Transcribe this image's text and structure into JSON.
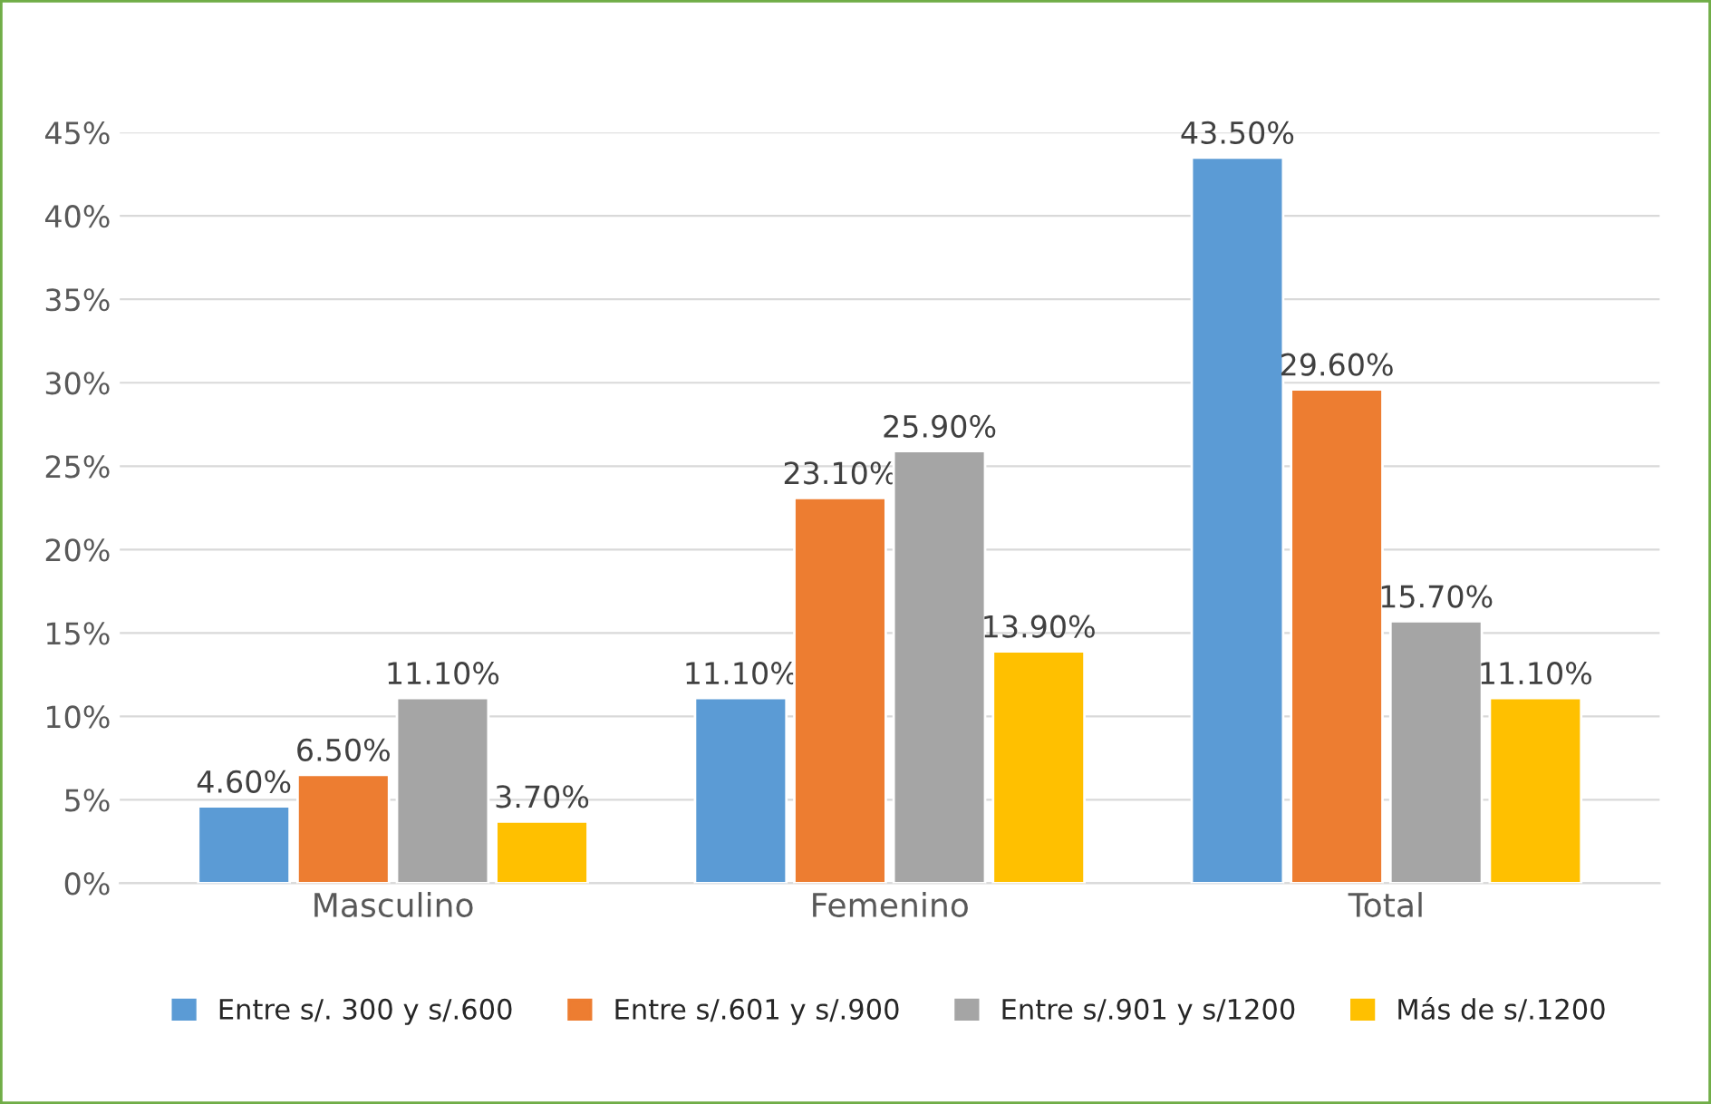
{
  "chart_data": {
    "type": "bar",
    "categories": [
      "Masculino",
      "Femenino",
      "Total"
    ],
    "series": [
      {
        "name": "Entre s/. 300 y s/.600",
        "color": "#5b9bd5",
        "values": [
          4.6,
          11.1,
          43.5
        ],
        "value_labels": [
          "4.60%",
          "11.10%",
          "43.50%"
        ]
      },
      {
        "name": "Entre s/.601 y s/.900",
        "color": "#ed7d31",
        "values": [
          6.5,
          23.1,
          29.6
        ],
        "value_labels": [
          "6.50%",
          "23.10%",
          "29.60%"
        ]
      },
      {
        "name": "Entre s/.901 y s/1200",
        "color": "#a5a5a5",
        "values": [
          11.1,
          25.9,
          15.7
        ],
        "value_labels": [
          "11.10%",
          "25.90%",
          "15.70%"
        ]
      },
      {
        "name": "Más de s/.1200",
        "color": "#ffc000",
        "values": [
          3.7,
          13.9,
          11.1
        ],
        "value_labels": [
          "3.70%",
          "13.90%",
          "11.10%"
        ]
      }
    ],
    "ylim": [
      0,
      45
    ],
    "yticks": [
      {
        "value": 0,
        "label": "0%"
      },
      {
        "value": 5,
        "label": "5%"
      },
      {
        "value": 10,
        "label": "10%"
      },
      {
        "value": 15,
        "label": "15%"
      },
      {
        "value": 20,
        "label": "20%"
      },
      {
        "value": 25,
        "label": "25%"
      },
      {
        "value": 30,
        "label": "30%"
      },
      {
        "value": 35,
        "label": "35%"
      },
      {
        "value": 40,
        "label": "40%"
      },
      {
        "value": 45,
        "label": "45%"
      }
    ],
    "grid": "y",
    "legend": "bottom"
  }
}
